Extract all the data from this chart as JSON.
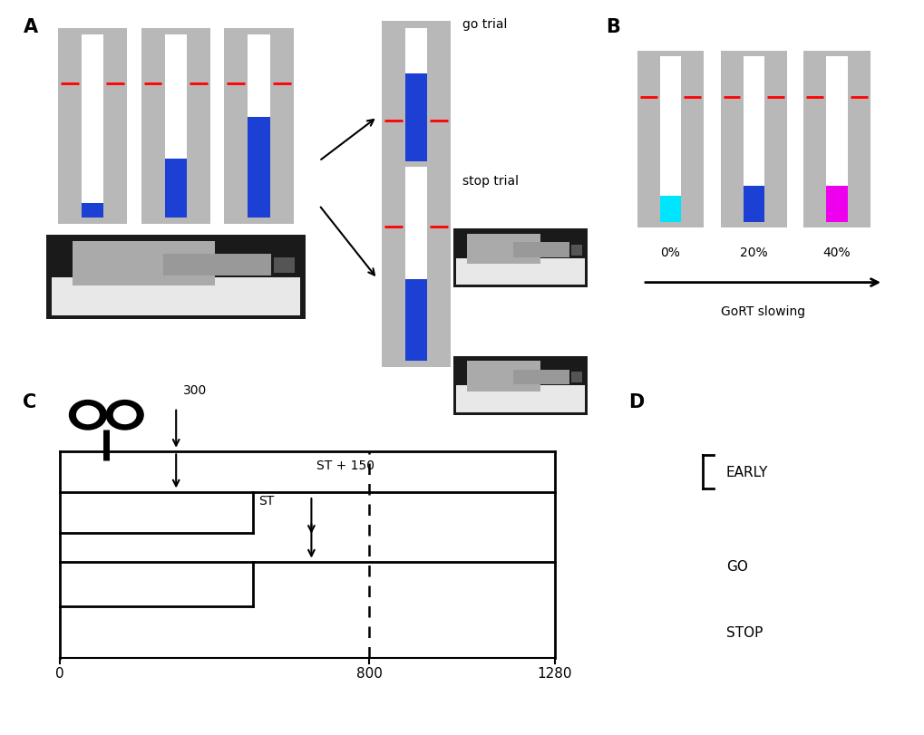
{
  "bg_color": "#ffffff",
  "panel_bg": "#b8b8b8",
  "bar_white": "#ffffff",
  "bar_blue": "#1c3fd4",
  "bar_cyan": "#00e5ff",
  "bar_magenta": "#ee00ee",
  "bar_red": "#ff0000",
  "label_A": "A",
  "label_B": "B",
  "label_C": "C",
  "label_D": "D",
  "go_trial_label": "go trial",
  "stop_trial_label": "stop trial",
  "pct_labels": [
    "0%",
    "20%",
    "40%"
  ],
  "gort_slowing": "GoRT slowing",
  "early_label": "EARLY",
  "go_label": "GO",
  "stop_label": "STOP",
  "tms_label": "300",
  "st_label": "ST",
  "st150_label": "ST + 150"
}
